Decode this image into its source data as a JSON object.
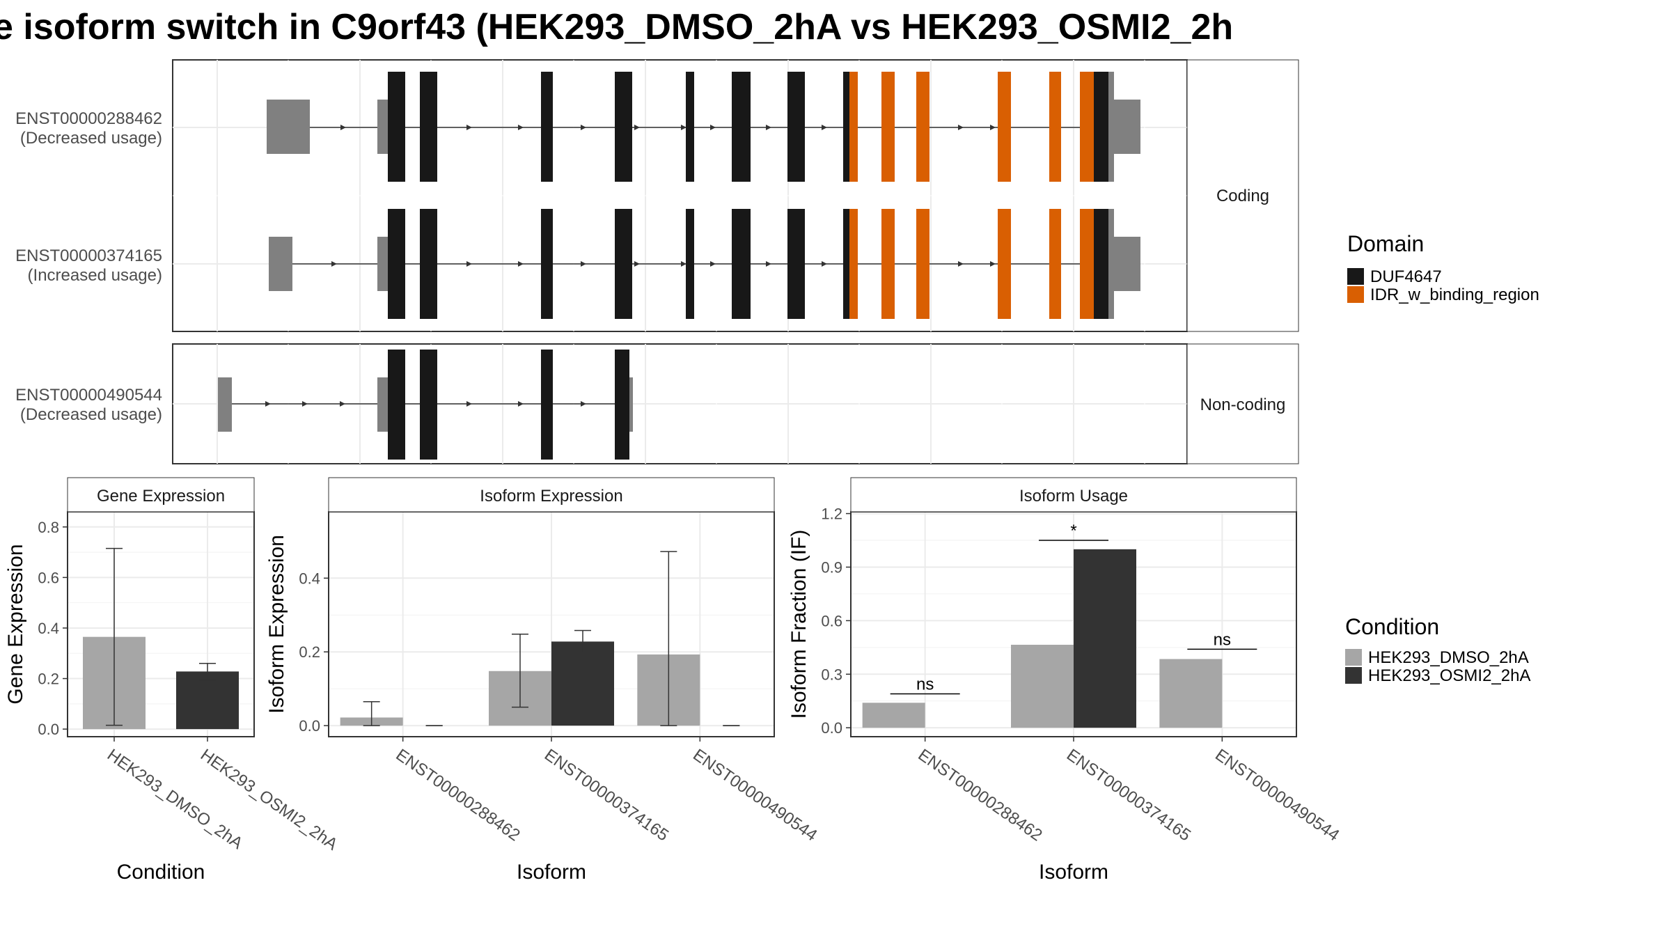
{
  "title": "e isoform switch in C9orf43 (HEK293_DMSO_2hA vs HEK293_OSMI2_2h",
  "colors": {
    "duf": "#181818",
    "idr": "#d95f02",
    "utr": "#808080",
    "dmso": "#a6a6a6",
    "osmi": "#333333",
    "strip": "#ffffff"
  },
  "transcripts": {
    "coding_label": "Coding",
    "noncoding_label": "Non-coding",
    "items": [
      {
        "id": "ENST00000288462",
        "usage": "(Decreased usage)"
      },
      {
        "id": "ENST00000374165",
        "usage": "(Increased usage)"
      },
      {
        "id": "ENST00000490544",
        "usage": "(Decreased usage)"
      }
    ]
  },
  "legend_domain": {
    "title": "Domain",
    "items": [
      {
        "label": "DUF4647",
        "color": "#181818"
      },
      {
        "label": "IDR_w_binding_region",
        "color": "#d95f02"
      }
    ]
  },
  "legend_condition": {
    "title": "Condition",
    "items": [
      {
        "label": "HEK293_DMSO_2hA",
        "color": "#a6a6a6"
      },
      {
        "label": "HEK293_OSMI2_2hA",
        "color": "#333333"
      }
    ]
  },
  "chart_data": [
    {
      "type": "bar",
      "title": "Gene Expression",
      "xlabel": "Condition",
      "ylabel": "Gene Expression",
      "ylim": [
        -0.03,
        0.86
      ],
      "yticks": [
        0.0,
        0.2,
        0.4,
        0.6,
        0.8
      ],
      "ytick_labels": [
        "0.0",
        "0.2",
        "0.4",
        "0.6",
        "0.8"
      ],
      "categories": [
        "HEK293_DMSO_2hA",
        "HEK293_OSMI2_2hA"
      ],
      "values": [
        0.365,
        0.228
      ],
      "error_low": [
        0.015,
        0.195
      ],
      "error_high": [
        0.715,
        0.26
      ],
      "grid": true
    },
    {
      "type": "bar",
      "title": "Isoform Expression",
      "xlabel": "Isoform",
      "ylabel": "Isoform Expression",
      "ylim": [
        -0.03,
        0.58
      ],
      "yticks": [
        0.0,
        0.2,
        0.4
      ],
      "ytick_labels": [
        "0.0",
        "0.2",
        "0.4"
      ],
      "categories": [
        "ENST00000288462",
        "ENST00000374165",
        "ENST00000490544"
      ],
      "series": [
        {
          "name": "HEK293_DMSO_2hA",
          "values": [
            0.022,
            0.148,
            0.193
          ],
          "error_low": [
            0.0,
            0.05,
            0.0
          ],
          "error_high": [
            0.065,
            0.248,
            0.472
          ]
        },
        {
          "name": "HEK293_OSMI2_2hA",
          "values": [
            0.0,
            0.228,
            0.0
          ],
          "error_low": [
            0.0,
            0.198,
            0.0
          ],
          "error_high": [
            0.0,
            0.258,
            0.0
          ]
        }
      ],
      "grid": true
    },
    {
      "type": "bar",
      "title": "Isoform Usage",
      "xlabel": "Isoform",
      "ylabel": "Isoform Fraction (IF)",
      "ylim": [
        -0.05,
        1.21
      ],
      "yticks": [
        0.0,
        0.3,
        0.6,
        0.9,
        1.2
      ],
      "ytick_labels": [
        "0.0",
        "0.3",
        "0.6",
        "0.9",
        "1.2"
      ],
      "categories": [
        "ENST00000288462",
        "ENST00000374165",
        "ENST00000490544"
      ],
      "series": [
        {
          "name": "HEK293_DMSO_2hA",
          "values": [
            0.14,
            0.465,
            0.385
          ]
        },
        {
          "name": "HEK293_OSMI2_2hA",
          "values": [
            0.0,
            1.0,
            0.0
          ]
        }
      ],
      "annotations": [
        {
          "category": "ENST00000288462",
          "text": "ns",
          "y": 0.19
        },
        {
          "category": "ENST00000374165",
          "text": "*",
          "y": 1.05
        },
        {
          "category": "ENST00000490544",
          "text": "ns",
          "y": 0.44
        }
      ],
      "grid": true
    }
  ]
}
